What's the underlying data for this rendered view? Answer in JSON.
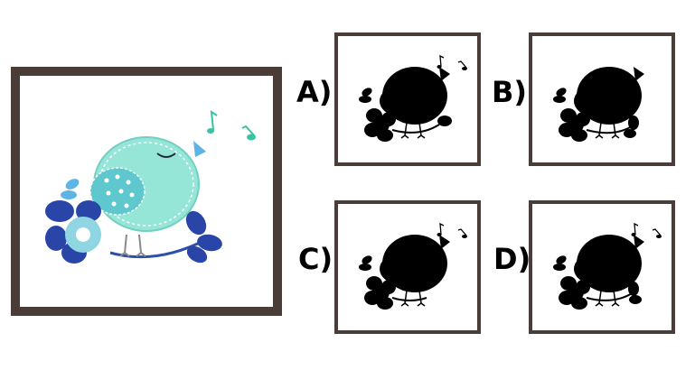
{
  "question": {
    "options": [
      {
        "key": "a",
        "label": "A)"
      },
      {
        "key": "b",
        "label": "B)"
      },
      {
        "key": "c",
        "label": "C)"
      },
      {
        "key": "d",
        "label": "D)"
      }
    ]
  },
  "colors": {
    "frame": "#4a3d37",
    "bird_body": "#96e6d8",
    "wing": "#5fc7ce",
    "flower_dark": "#2a45a8",
    "flower_light": "#8fd6e2",
    "music_note": "#36c4a4",
    "silhouette": "#000000"
  },
  "icons": [
    "bird-illustration",
    "bird-silhouette-icon",
    "music-note-icon",
    "flower-icon"
  ]
}
